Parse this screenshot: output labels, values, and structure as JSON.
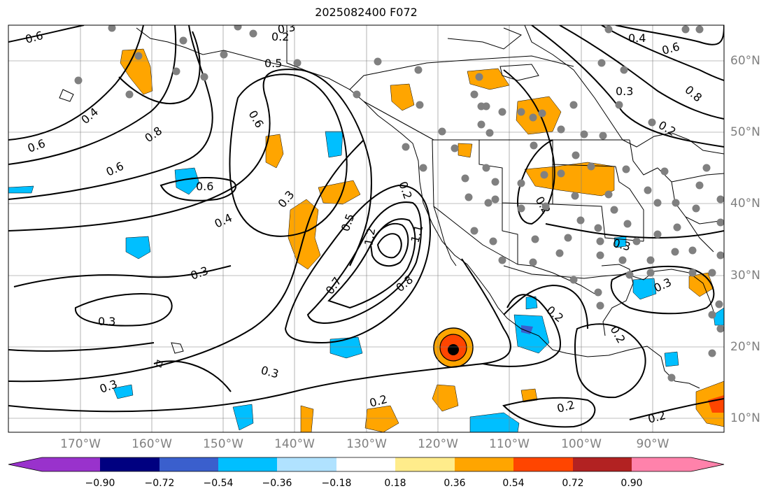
{
  "title": "2025082400 F072",
  "lon_labels": [
    "170°W",
    "160°W",
    "150°W",
    "140°W",
    "130°W",
    "120°W",
    "110°W",
    "100°W",
    "90°W"
  ],
  "lat_labels": [
    "60°N",
    "50°N",
    "40°N",
    "30°N",
    "20°N",
    "10°N"
  ],
  "colorbar": {
    "colors": [
      "#9932cc",
      "#000080",
      "#3a5fcd",
      "#00bfff",
      "#b0e2ff",
      "#ffffff",
      "#ffec8b",
      "#ffa500",
      "#ff4500",
      "#b22222",
      "#ff82ab"
    ],
    "tick_labels": [
      "−0.90",
      "−0.72",
      "−0.54",
      "−0.36",
      "−0.18",
      "0.18",
      "0.36",
      "0.54",
      "0.72",
      "0.90"
    ]
  },
  "contour_labels": [
    "0.6",
    "0.2",
    "0.4",
    "0.6",
    "0.5",
    "0.3",
    "0.3",
    "0.2",
    "0.8",
    "0.6",
    "0.4",
    "0.8",
    "0.6",
    "0.6",
    "0.4",
    "0.3",
    "0.6",
    "0.3",
    "0.5",
    "0.7",
    "0.8",
    "0.3",
    "0.3",
    "0.2",
    "0.3",
    "0.2",
    "0.2",
    "0.3",
    "0.2",
    "0.2",
    "0.3",
    "1.2",
    "1.1",
    "0.2",
    "0.2"
  ],
  "map_colors": {
    "frame": "#000000",
    "contour": "#000000",
    "coast": "#000000",
    "grid": "#808080",
    "stations": "#808080",
    "positive_anomaly": "#ffa500",
    "strong_positive": "#ff4500",
    "negative_anomaly": "#00bfff",
    "strong_negative": "#3a5fcd"
  }
}
